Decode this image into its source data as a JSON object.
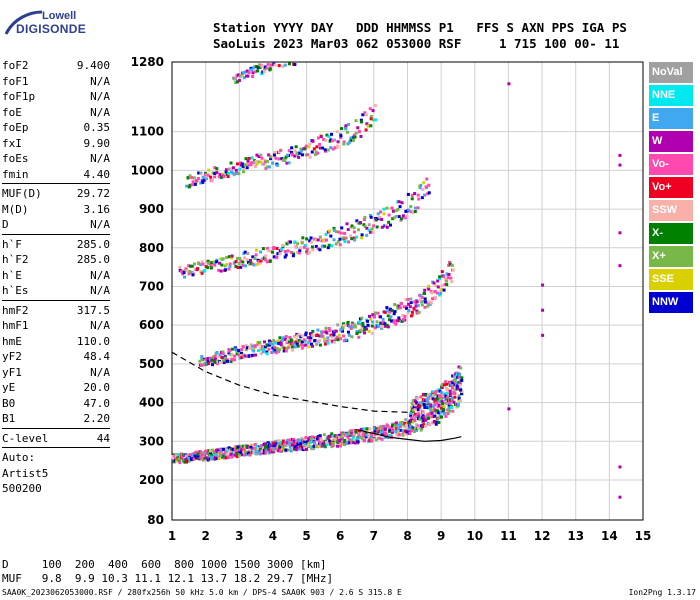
{
  "logo": {
    "line1": "Lowell",
    "line2": "DIGISONDE"
  },
  "header": {
    "line1": "Station YYYY DAY   DDD HHMMSS P1   FFS S AXN PPS IGA PS",
    "line2": "SaoLuis 2023 Mar03 062 053000 RSF     1 715 100 00- 11"
  },
  "params": {
    "group1": [
      {
        "k": "foF2",
        "v": "9.400"
      },
      {
        "k": "foF1",
        "v": "N/A"
      },
      {
        "k": "foF1p",
        "v": "N/A"
      },
      {
        "k": "foE",
        "v": "N/A"
      },
      {
        "k": "foEp",
        "v": "0.35"
      },
      {
        "k": "fxI",
        "v": "9.90"
      },
      {
        "k": "foEs",
        "v": "N/A"
      },
      {
        "k": "fmin",
        "v": "4.40"
      }
    ],
    "group2": [
      {
        "k": "MUF(D)",
        "v": "29.72"
      },
      {
        "k": "M(D)",
        "v": "3.16"
      },
      {
        "k": "D",
        "v": "N/A"
      }
    ],
    "group3": [
      {
        "k": "h`F",
        "v": "285.0"
      },
      {
        "k": "h`F2",
        "v": "285.0"
      },
      {
        "k": "h`E",
        "v": "N/A"
      },
      {
        "k": "h`Es",
        "v": "N/A"
      }
    ],
    "group4": [
      {
        "k": "hmF2",
        "v": "317.5"
      },
      {
        "k": "hmF1",
        "v": "N/A"
      },
      {
        "k": "hmE",
        "v": "110.0"
      },
      {
        "k": "yF2",
        "v": "48.4"
      },
      {
        "k": "yF1",
        "v": "N/A"
      },
      {
        "k": "yE",
        "v": "20.0"
      },
      {
        "k": "B0",
        "v": "47.0"
      },
      {
        "k": "B1",
        "v": "2.20"
      }
    ],
    "group5": [
      {
        "k": "C-level",
        "v": "44"
      }
    ],
    "auto": [
      "Auto:",
      "Artist5",
      "500200"
    ]
  },
  "legend": [
    {
      "label": "NoVal",
      "color": "#a0a0a0"
    },
    {
      "label": "NNE",
      "color": "#00e8f0"
    },
    {
      "label": "E",
      "color": "#40a8f0"
    },
    {
      "label": "W",
      "color": "#b000b0"
    },
    {
      "label": "Vo-",
      "color": "#ff48b0"
    },
    {
      "label": "Vo+",
      "color": "#f00020"
    },
    {
      "label": "SSW",
      "color": "#f8b0a8"
    },
    {
      "label": "X-",
      "color": "#008000"
    },
    {
      "label": "X+",
      "color": "#78b848"
    },
    {
      "label": "SSE",
      "color": "#d8d000"
    },
    {
      "label": "NNW",
      "color": "#0000d0"
    }
  ],
  "bottom": {
    "dline": "D     100  200  400  600  800 1000 1500 3000 [km]",
    "mufline": "MUF   9.8  9.9 10.3 11.1 12.1 13.7 18.2 29.7 [MHz]"
  },
  "footer": {
    "left": "SAA0K_2023062053000.RSF / 280fx256h 50 kHz 5.0 km / DPS-4 SAA0K 903 / 2.6 S 315.8 E",
    "right": "Ion2Png 1.3.17"
  },
  "chart_data": {
    "type": "scatter",
    "xlim": [
      1,
      15
    ],
    "ylim": [
      80,
      1280
    ],
    "xticks": [
      1,
      2,
      3,
      4,
      5,
      6,
      7,
      8,
      9,
      10,
      11,
      12,
      13,
      14,
      15
    ],
    "yticks": [
      80,
      200,
      300,
      400,
      500,
      600,
      700,
      800,
      900,
      1000,
      1100,
      1280
    ],
    "grid": true,
    "traces": [
      {
        "name": "F2 O-trace 1st hop",
        "x": [
          1.0,
          2.0,
          3.0,
          4.0,
          5.0,
          6.0,
          7.0,
          8.0,
          8.8,
          9.3,
          9.6
        ],
        "y": [
          247,
          255,
          265,
          275,
          283,
          292,
          305,
          322,
          345,
          380,
          410
        ]
      },
      {
        "name": "F2 2nd hop",
        "x": [
          1.8,
          3.0,
          4.0,
          5.0,
          6.0,
          7.0,
          8.0,
          8.8,
          9.3
        ],
        "y": [
          495,
          515,
          530,
          545,
          560,
          585,
          620,
          665,
          720
        ]
      },
      {
        "name": "F2 3rd hop",
        "x": [
          1.2,
          2.5,
          3.5,
          4.5,
          5.5,
          6.5,
          7.5,
          8.2,
          8.6
        ],
        "y": [
          725,
          745,
          760,
          780,
          800,
          825,
          860,
          895,
          930
        ]
      },
      {
        "name": "F2 4th hop",
        "x": [
          1.4,
          2.5,
          3.5,
          4.5,
          5.5,
          6.3,
          7.0
        ],
        "y": [
          960,
          985,
          1005,
          1020,
          1050,
          1075,
          1120
        ]
      },
      {
        "name": "F2 5th hop",
        "x": [
          2.8,
          3.5,
          4.2,
          4.8
        ],
        "y": [
          1225,
          1250,
          1270,
          1280
        ]
      }
    ],
    "profile_dashed": {
      "x": [
        1.0,
        2.0,
        3.0,
        4.0,
        5.0,
        6.0,
        7.0,
        8.0
      ],
      "y": [
        530,
        480,
        445,
        420,
        405,
        390,
        378,
        375
      ]
    },
    "profile_solid": {
      "x": [
        6.5,
        7.0,
        7.5,
        8.0,
        8.5,
        9.0,
        9.4,
        9.6
      ],
      "y": [
        330,
        320,
        310,
        305,
        300,
        302,
        308,
        312
      ]
    },
    "isolated_points": [
      {
        "x": 11.0,
        "y": 1225
      },
      {
        "x": 11.0,
        "y": 385
      },
      {
        "x": 12.0,
        "y": 640
      },
      {
        "x": 12.0,
        "y": 705
      },
      {
        "x": 12.0,
        "y": 575
      },
      {
        "x": 14.3,
        "y": 1040
      },
      {
        "x": 14.3,
        "y": 1015
      },
      {
        "x": 14.3,
        "y": 235
      },
      {
        "x": 14.3,
        "y": 150
      },
      {
        "x": 14.3,
        "y": 755
      },
      {
        "x": 14.3,
        "y": 840
      }
    ]
  }
}
